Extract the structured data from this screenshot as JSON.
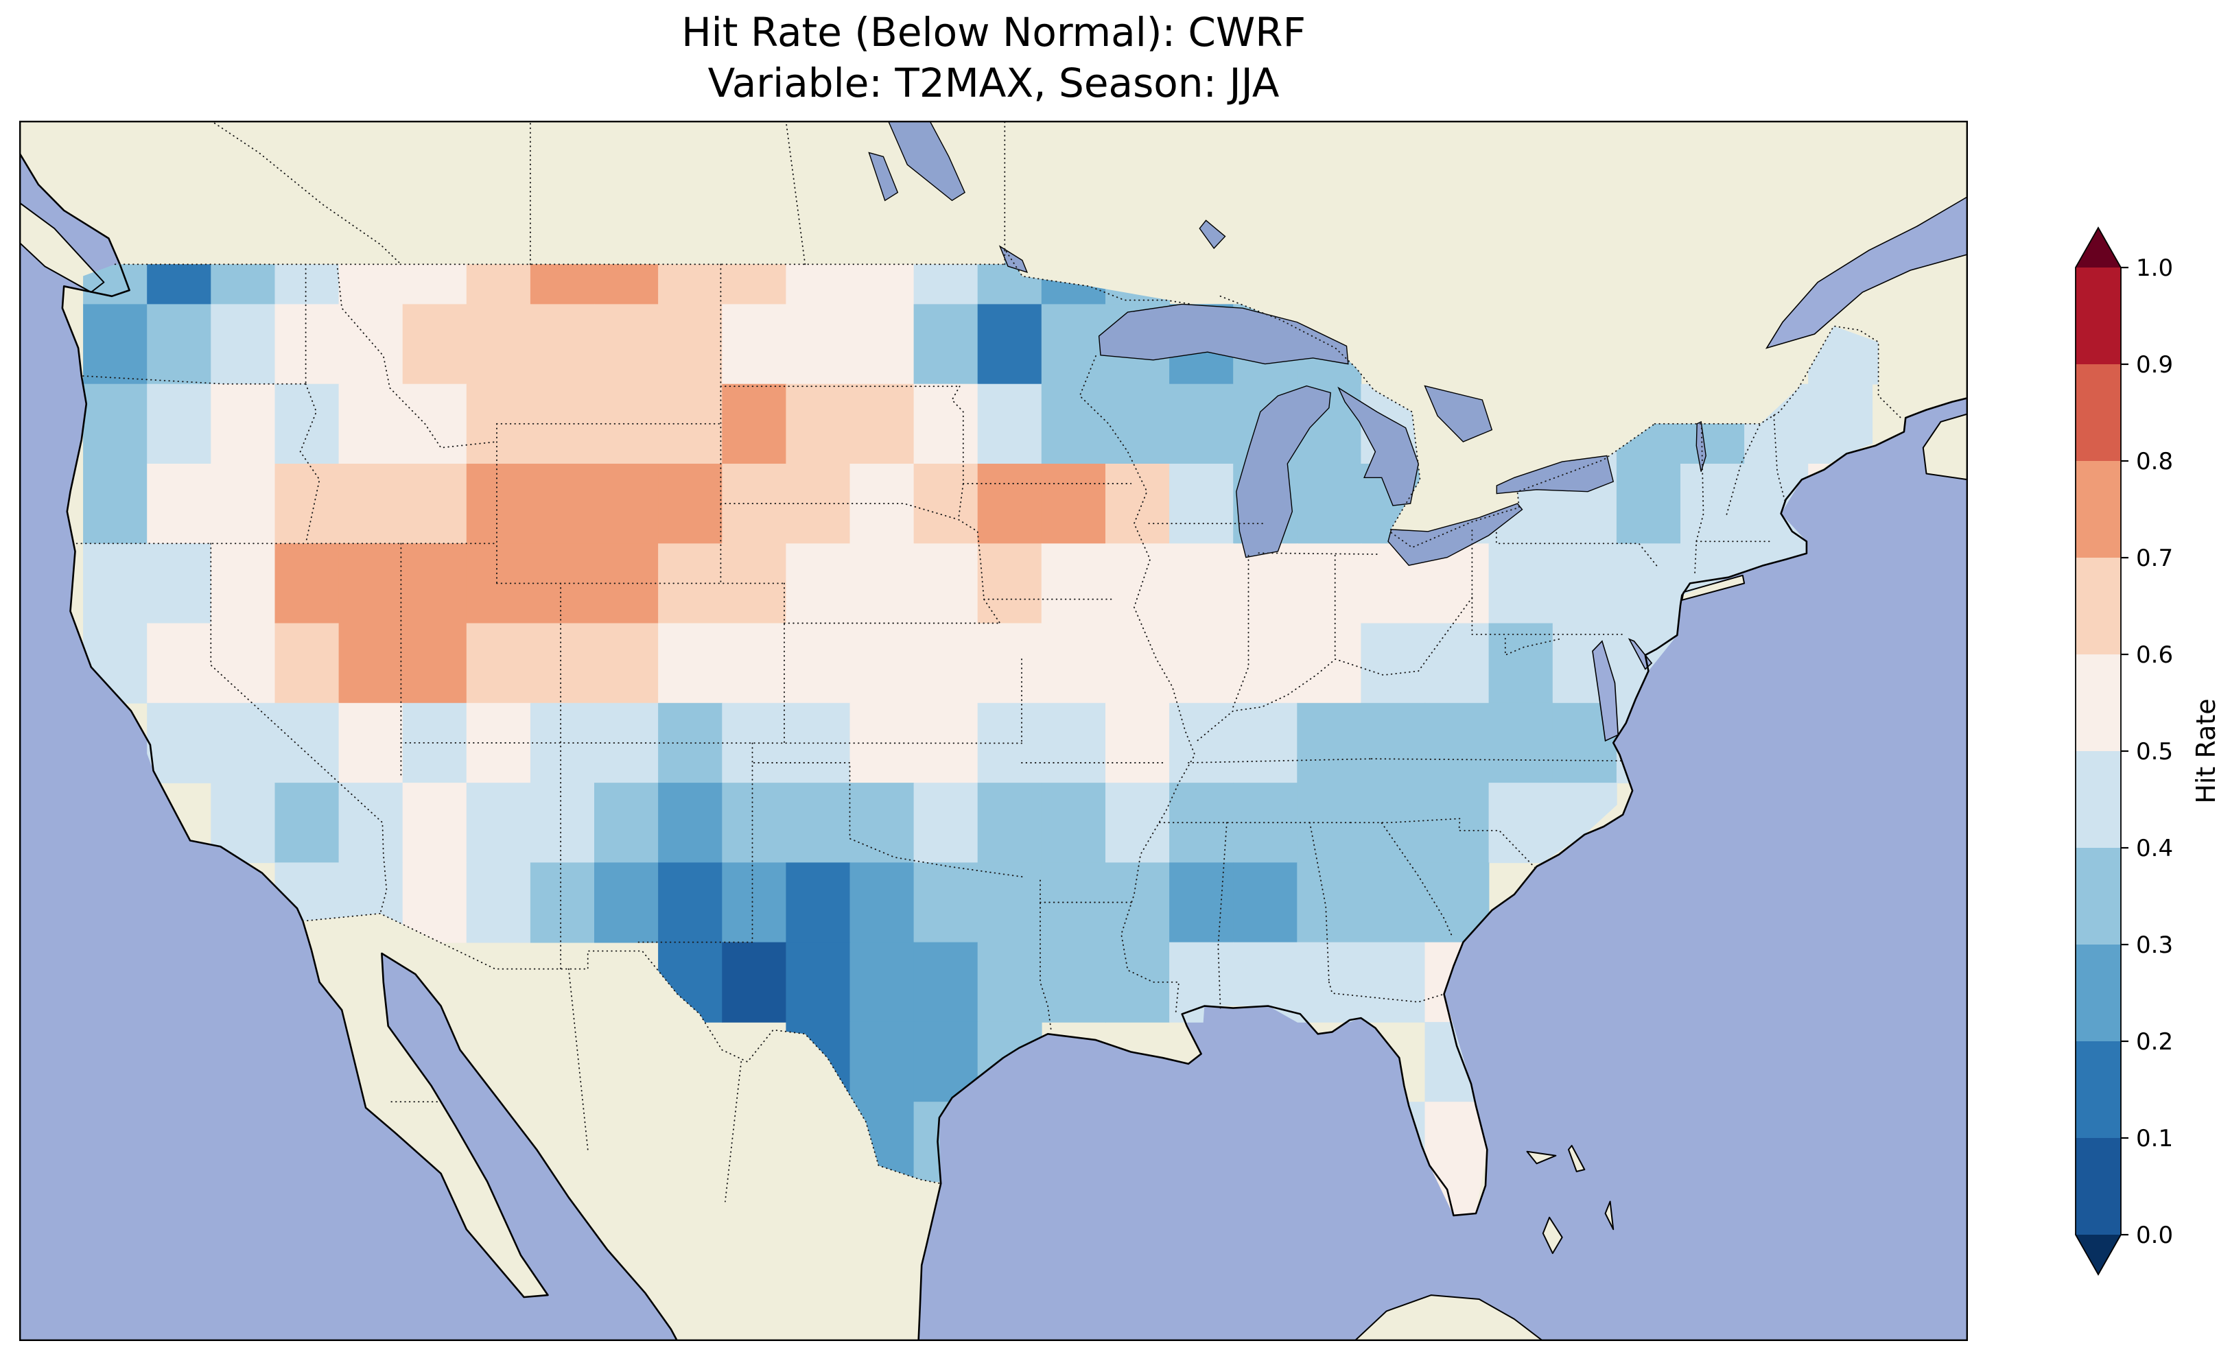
{
  "title": {
    "line1": "Hit Rate (Below Normal): CWRF",
    "line2": "Variable: T2MAX, Season: JJA"
  },
  "colorbar": {
    "label": "Hit Rate",
    "ticks": [
      "1.0",
      "0.9",
      "0.8",
      "0.7",
      "0.6",
      "0.5",
      "0.4",
      "0.3",
      "0.2",
      "0.1",
      "0.0"
    ],
    "extend": "both"
  },
  "map": {
    "colors": {
      "land": "#f0eedb",
      "ocean": "#9dadd9",
      "lake": "#8fa3cf",
      "coast": "#000000",
      "border": "#1a1a1a",
      "frame": "#000000"
    }
  },
  "chart_data": {
    "type": "heatmap",
    "title": "Hit Rate (Below Normal): CWRF",
    "subtitle": "Variable: T2MAX, Season: JJA",
    "colorbar_label": "Hit Rate",
    "colorbar_ticks": [
      0.0,
      0.1,
      0.2,
      0.3,
      0.4,
      0.5,
      0.6,
      0.7,
      0.8,
      0.9,
      1.0
    ],
    "value_range": [
      0,
      1
    ],
    "legend_position": "right",
    "projection_extent": {
      "lon": [
        -126,
        -65
      ],
      "lat": [
        22,
        52.6
      ]
    },
    "colors": {
      "levels": [
        0,
        0.1,
        0.2,
        0.3,
        0.4,
        0.5,
        0.6,
        0.7,
        0.8,
        0.9,
        1.0
      ],
      "palette": [
        "#072f5f",
        "#1b5899",
        "#2d77b3",
        "#5da2cb",
        "#94c5dd",
        "#cfe3ef",
        "#f9efe9",
        "#f9d4bd",
        "#ef9c77",
        "#d75f4c",
        "#b0182b",
        "#67001f"
      ],
      "palette_note": "index 0 = below-range triangle, 1..10 = bands 0.0-0.1 ... 0.9-1.0, 11 = above-range triangle"
    },
    "grid": {
      "lon_start": -126,
      "lon_step": 2,
      "lat_start": 52,
      "lat_step": -2,
      "cols": 30,
      "rows": 14,
      "values": [
        [
          null,
          null,
          null,
          null,
          null,
          null,
          null,
          null,
          null,
          null,
          null,
          null,
          null,
          null,
          null,
          null,
          null,
          null,
          null,
          null,
          null,
          null,
          null,
          null,
          null,
          null,
          null,
          null,
          null,
          null
        ],
        [
          null,
          0.3,
          0.15,
          0.3,
          0.45,
          0.5,
          0.55,
          0.65,
          0.7,
          0.75,
          0.65,
          0.6,
          0.55,
          0.5,
          0.45,
          0.35,
          0.25,
          0.3,
          null,
          null,
          null,
          null,
          null,
          null,
          null,
          null,
          null,
          null,
          null,
          null
        ],
        [
          null,
          0.25,
          0.35,
          0.45,
          0.5,
          0.55,
          0.6,
          0.6,
          0.6,
          0.65,
          0.6,
          0.55,
          0.55,
          0.5,
          0.3,
          0.15,
          0.3,
          0.3,
          0.25,
          0.3,
          0.35,
          null,
          null,
          null,
          null,
          null,
          null,
          null,
          0.45,
          0.4
        ],
        [
          null,
          0.3,
          0.45,
          0.5,
          0.45,
          0.5,
          0.55,
          0.6,
          0.65,
          0.65,
          0.6,
          0.75,
          0.65,
          0.6,
          0.5,
          0.4,
          0.35,
          0.35,
          0.3,
          0.3,
          0.35,
          0.4,
          null,
          null,
          0.4,
          0.35,
          0.35,
          0.4,
          0.45,
          null
        ],
        [
          null,
          0.35,
          0.5,
          0.55,
          0.6,
          0.6,
          0.65,
          0.7,
          0.75,
          0.75,
          0.7,
          0.65,
          0.6,
          0.55,
          0.6,
          0.7,
          0.7,
          0.6,
          0.45,
          0.35,
          0.35,
          0.35,
          0.4,
          0.45,
          0.4,
          0.35,
          0.4,
          0.45,
          0.5,
          null
        ],
        [
          null,
          0.4,
          0.45,
          0.55,
          0.7,
          0.75,
          0.7,
          0.7,
          0.7,
          0.7,
          0.65,
          0.6,
          0.55,
          0.55,
          0.55,
          0.6,
          0.55,
          0.5,
          0.5,
          0.5,
          0.55,
          0.55,
          0.5,
          0.45,
          0.45,
          0.4,
          0.4,
          0.45,
          null,
          null
        ],
        [
          null,
          0.45,
          0.5,
          0.5,
          0.65,
          0.7,
          0.7,
          0.65,
          0.6,
          0.6,
          0.55,
          0.5,
          0.5,
          0.55,
          0.55,
          0.55,
          0.5,
          0.5,
          0.5,
          0.55,
          0.55,
          0.45,
          0.4,
          0.35,
          0.4,
          0.4,
          0.45,
          null,
          null,
          null
        ],
        [
          null,
          null,
          0.45,
          0.4,
          0.45,
          0.5,
          0.45,
          0.5,
          0.45,
          0.4,
          0.35,
          0.4,
          0.45,
          0.5,
          0.5,
          0.45,
          0.45,
          0.5,
          0.45,
          0.4,
          0.35,
          0.3,
          0.3,
          0.3,
          0.35,
          0.4,
          null,
          null,
          null,
          null
        ],
        [
          null,
          null,
          null,
          0.4,
          0.35,
          0.45,
          0.5,
          0.45,
          0.4,
          0.3,
          0.25,
          0.3,
          0.3,
          0.35,
          0.4,
          0.35,
          0.35,
          0.4,
          0.35,
          0.3,
          0.3,
          0.3,
          0.35,
          0.4,
          0.4,
          null,
          null,
          null,
          null,
          null
        ],
        [
          null,
          null,
          null,
          null,
          0.4,
          0.45,
          0.5,
          0.45,
          0.35,
          0.25,
          0.15,
          0.2,
          0.15,
          0.2,
          0.3,
          0.35,
          0.3,
          0.3,
          0.25,
          0.25,
          0.3,
          0.3,
          0.35,
          null,
          null,
          null,
          null,
          null,
          null,
          null
        ],
        [
          null,
          null,
          null,
          null,
          null,
          null,
          null,
          null,
          null,
          null,
          0.1,
          0.05,
          0.1,
          0.2,
          0.25,
          0.3,
          0.35,
          0.35,
          0.4,
          0.4,
          0.45,
          0.45,
          0.5,
          null,
          null,
          null,
          null,
          null,
          null,
          null
        ],
        [
          null,
          null,
          null,
          null,
          null,
          null,
          null,
          null,
          null,
          null,
          null,
          null,
          0.1,
          0.2,
          0.25,
          0.3,
          null,
          null,
          null,
          null,
          null,
          null,
          0.45,
          0.5,
          null,
          null,
          null,
          null,
          null,
          null
        ],
        [
          null,
          null,
          null,
          null,
          null,
          null,
          null,
          null,
          null,
          null,
          null,
          null,
          null,
          0.25,
          0.3,
          null,
          null,
          null,
          null,
          null,
          null,
          0.45,
          0.5,
          0.55,
          null,
          null,
          null,
          null,
          null,
          null
        ],
        [
          null,
          null,
          null,
          null,
          null,
          null,
          null,
          null,
          null,
          null,
          null,
          null,
          null,
          null,
          null,
          null,
          null,
          null,
          null,
          null,
          null,
          0.6,
          0.5,
          null,
          null,
          null,
          null,
          null,
          null,
          null
        ]
      ]
    }
  }
}
